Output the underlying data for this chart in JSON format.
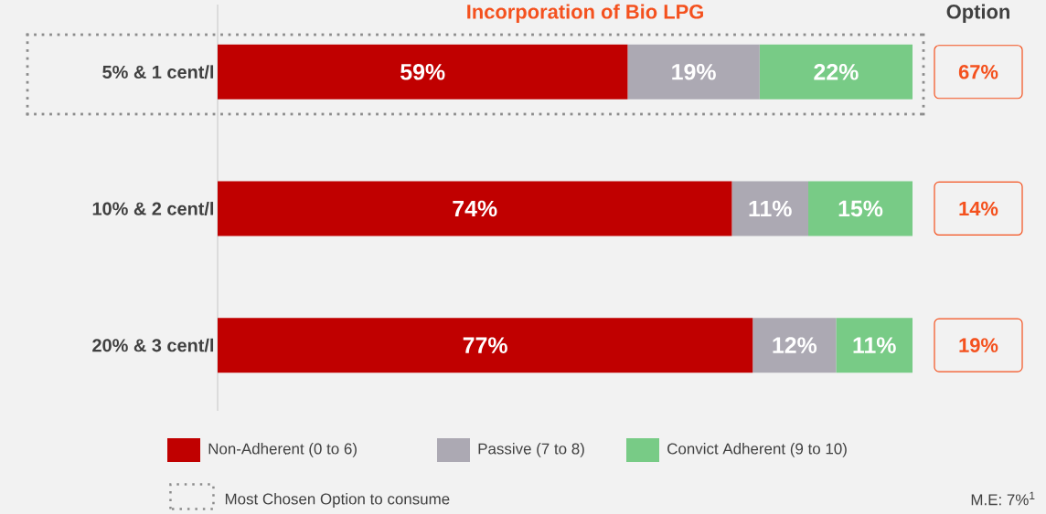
{
  "chart_data": {
    "type": "bar",
    "orientation": "horizontal",
    "stacked": true,
    "title": "Incorporation of Bio LPG",
    "categories": [
      "5% & 1 cent/l",
      "10% & 2 cent/l",
      "20% & 3 cent/l"
    ],
    "series": [
      {
        "name": "Non-Adherent (0 to 6)",
        "color": "#c00000",
        "values": [
          59,
          74,
          77
        ],
        "value_labels": [
          "59%",
          "74%",
          "77%"
        ]
      },
      {
        "name": "Passive (7 to 8)",
        "color": "#aca9b3",
        "values": [
          19,
          11,
          12
        ],
        "value_labels": [
          "19%",
          "11%",
          "12%"
        ]
      },
      {
        "name": "Convict Adherent (9 to 10)",
        "color": "#78cb86",
        "values": [
          22,
          15,
          11
        ],
        "value_labels": [
          "22%",
          "15%",
          "11%"
        ]
      }
    ],
    "xlim": [
      0,
      100
    ],
    "tick_labels": "y",
    "legend": "bottom",
    "annotations": [
      "67%",
      "14%",
      "19%",
      "Option",
      "Most Chosen Option to consume",
      "M.E: 7%$^{1}$"
    ]
  }
}
